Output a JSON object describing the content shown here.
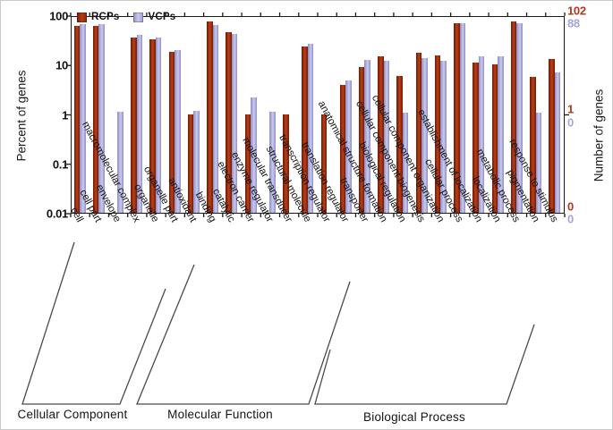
{
  "legend": {
    "series1_label": "RCPs",
    "series2_label": "VCPs"
  },
  "y_axis": {
    "title": "Percent of genes",
    "tick_labels": [
      "100",
      "10",
      "1",
      "0.1",
      "0.01"
    ]
  },
  "y2_axis": {
    "title": "Number of genes",
    "top_red": "102",
    "top_purple": "88",
    "mid_red": "1",
    "mid_purple": "0",
    "bottom_red": "0",
    "bottom_purple": "0"
  },
  "groups": [
    {
      "label": "Cellular Component"
    },
    {
      "label": "Molecular Function"
    },
    {
      "label": "Biological Process"
    }
  ],
  "colors": {
    "rcp_bar": "#9e2b0c",
    "vcp_bar": "#abaad9",
    "red_axis_label": "#b5371c",
    "purple_axis_label": "#a4a4d8"
  },
  "chart_data": {
    "type": "bar",
    "y_scale": "log",
    "ylim": [
      0.01,
      100
    ],
    "ylabel": "Percent of genes",
    "y2label": "Number of genes",
    "grid": false,
    "legend_position": "top-left inside",
    "categories": [
      "cell",
      "cell part",
      "envelope",
      "macromolecular complex",
      "organelle",
      "organelle part",
      "antioxidant",
      "binding",
      "catalytic",
      "electron carrier",
      "enzyme regulator",
      "molecular transducer",
      "structural molecule",
      "transcription regulator",
      "translation regulator",
      "transporter",
      "anatomical structure formation",
      "biological regulation",
      "cellular component biogenesis",
      "cellular component organization",
      "cellular process",
      "establishment of localization",
      "localization",
      "metabolic process",
      "pigmentation",
      "response to stimulus"
    ],
    "series": [
      {
        "name": "RCPs",
        "values": [
          60,
          60,
          null,
          35,
          32,
          18,
          1.0,
          75,
          46,
          1.0,
          null,
          1.0,
          23,
          1.0,
          3.9,
          8.8,
          14.7,
          5.9,
          17.5,
          15.6,
          70,
          11,
          10,
          74,
          5.6,
          13
        ]
      },
      {
        "name": "VCPs",
        "values": [
          65,
          65,
          1.1,
          40,
          36,
          19.5,
          1.15,
          62,
          42,
          2.2,
          1.1,
          null,
          26,
          null,
          4.7,
          12.5,
          12,
          1.05,
          13.7,
          12,
          68,
          15,
          14.5,
          70,
          1.05,
          7
        ]
      }
    ],
    "group_spans": [
      {
        "name": "Cellular Component",
        "from": "cell",
        "to": "antioxidant"
      },
      {
        "name": "Molecular Function",
        "from": "binding",
        "to": "transporter"
      },
      {
        "name": "Biological Process",
        "from": "anatomical structure formation",
        "to": "response to stimulus"
      }
    ],
    "total_genes": {
      "RCPs": 102,
      "VCPs": 88
    }
  }
}
